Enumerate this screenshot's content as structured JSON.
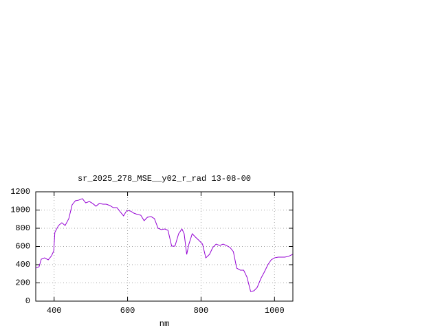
{
  "chart_data": {
    "type": "line",
    "title": "sr_2025_278_MSE__y02_r_rad 13-08-00",
    "x_label": "nm",
    "x": [
      350,
      359,
      365,
      374,
      384,
      393,
      399,
      402,
      412,
      421,
      430,
      440,
      449,
      458,
      467,
      477,
      486,
      496,
      505,
      514,
      523,
      533,
      542,
      552,
      561,
      571,
      580,
      589,
      598,
      608,
      617,
      627,
      636,
      645,
      654,
      664,
      673,
      683,
      692,
      701,
      710,
      720,
      729,
      739,
      748,
      754,
      761,
      767,
      776,
      785,
      795,
      804,
      813,
      823,
      832,
      841,
      851,
      860,
      869,
      879,
      888,
      897,
      907,
      916,
      925,
      935,
      944,
      953,
      963,
      972,
      982,
      991,
      1000,
      1010,
      1019,
      1028,
      1038,
      1049
    ],
    "series": [
      {
        "color": "#9400d3",
        "values": [
          362,
          377,
          460,
          475,
          453,
          498,
          551,
          755,
          830,
          860,
          830,
          906,
          1057,
          1102,
          1109,
          1125,
          1079,
          1094,
          1072,
          1042,
          1072,
          1064,
          1064,
          1049,
          1026,
          1026,
          981,
          936,
          996,
          989,
          966,
          951,
          943,
          883,
          921,
          928,
          906,
          800,
          785,
          792,
          777,
          604,
          604,
          740,
          792,
          740,
          513,
          626,
          740,
          702,
          664,
          626,
          475,
          513,
          589,
          626,
          611,
          626,
          611,
          589,
          543,
          362,
          340,
          340,
          264,
          106,
          113,
          151,
          249,
          317,
          400,
          453,
          475,
          483,
          483,
          483,
          491,
          513
        ]
      }
    ],
    "xlim": [
      350,
      1050
    ],
    "ylim": [
      0,
      1200
    ],
    "xticks": [
      400,
      600,
      800,
      1000
    ],
    "yticks": [
      0,
      200,
      400,
      600,
      800,
      1000,
      1200
    ],
    "grid": true
  }
}
